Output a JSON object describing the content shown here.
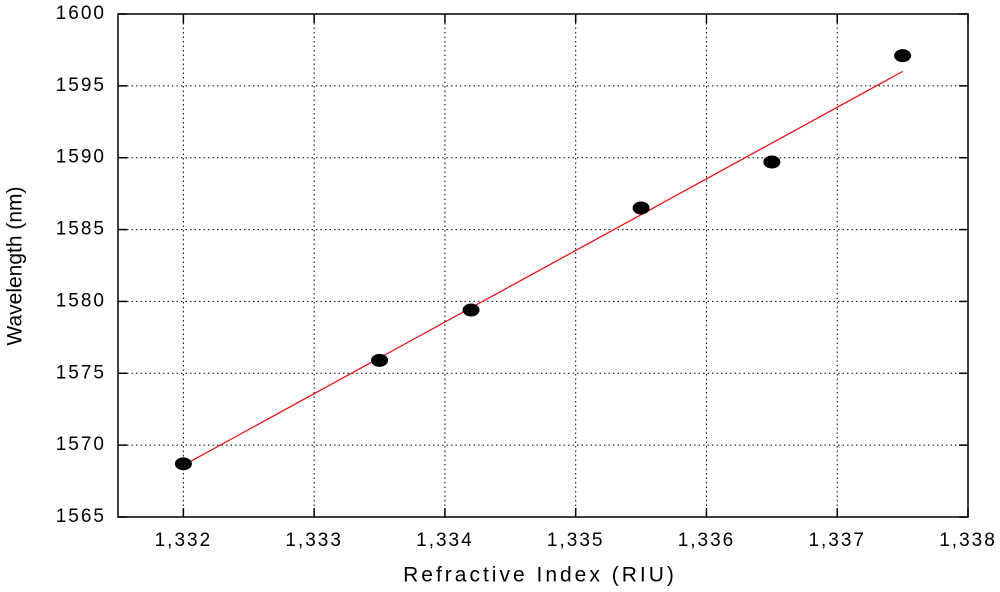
{
  "chart_data": {
    "type": "scatter",
    "x_label": "Refractive Index (RIU)",
    "y_label": "Wavelength (nm)",
    "x": [
      1.332,
      1.3335,
      1.3342,
      1.3355,
      1.3365,
      1.3375
    ],
    "y": [
      1568.7,
      1575.9,
      1579.4,
      1586.5,
      1589.7,
      1597.1
    ],
    "color": "#000000",
    "fit": {
      "x": [
        1.332,
        1.3375
      ],
      "y": [
        1568.6,
        1596.0
      ],
      "color": "#e8141b"
    },
    "xlim": [
      1.3315,
      1.338
    ],
    "ylim": [
      1565,
      1600
    ],
    "xticks": [
      {
        "value": 1.332,
        "label": "1,332"
      },
      {
        "value": 1.333,
        "label": "1,333"
      },
      {
        "value": 1.334,
        "label": "1,334"
      },
      {
        "value": 1.335,
        "label": "1,335"
      },
      {
        "value": 1.336,
        "label": "1,336"
      },
      {
        "value": 1.337,
        "label": "1,337"
      },
      {
        "value": 1.338,
        "label": "1,338"
      }
    ],
    "yticks": [
      1565,
      1570,
      1575,
      1580,
      1585,
      1590,
      1595,
      1600
    ],
    "grid": true
  }
}
